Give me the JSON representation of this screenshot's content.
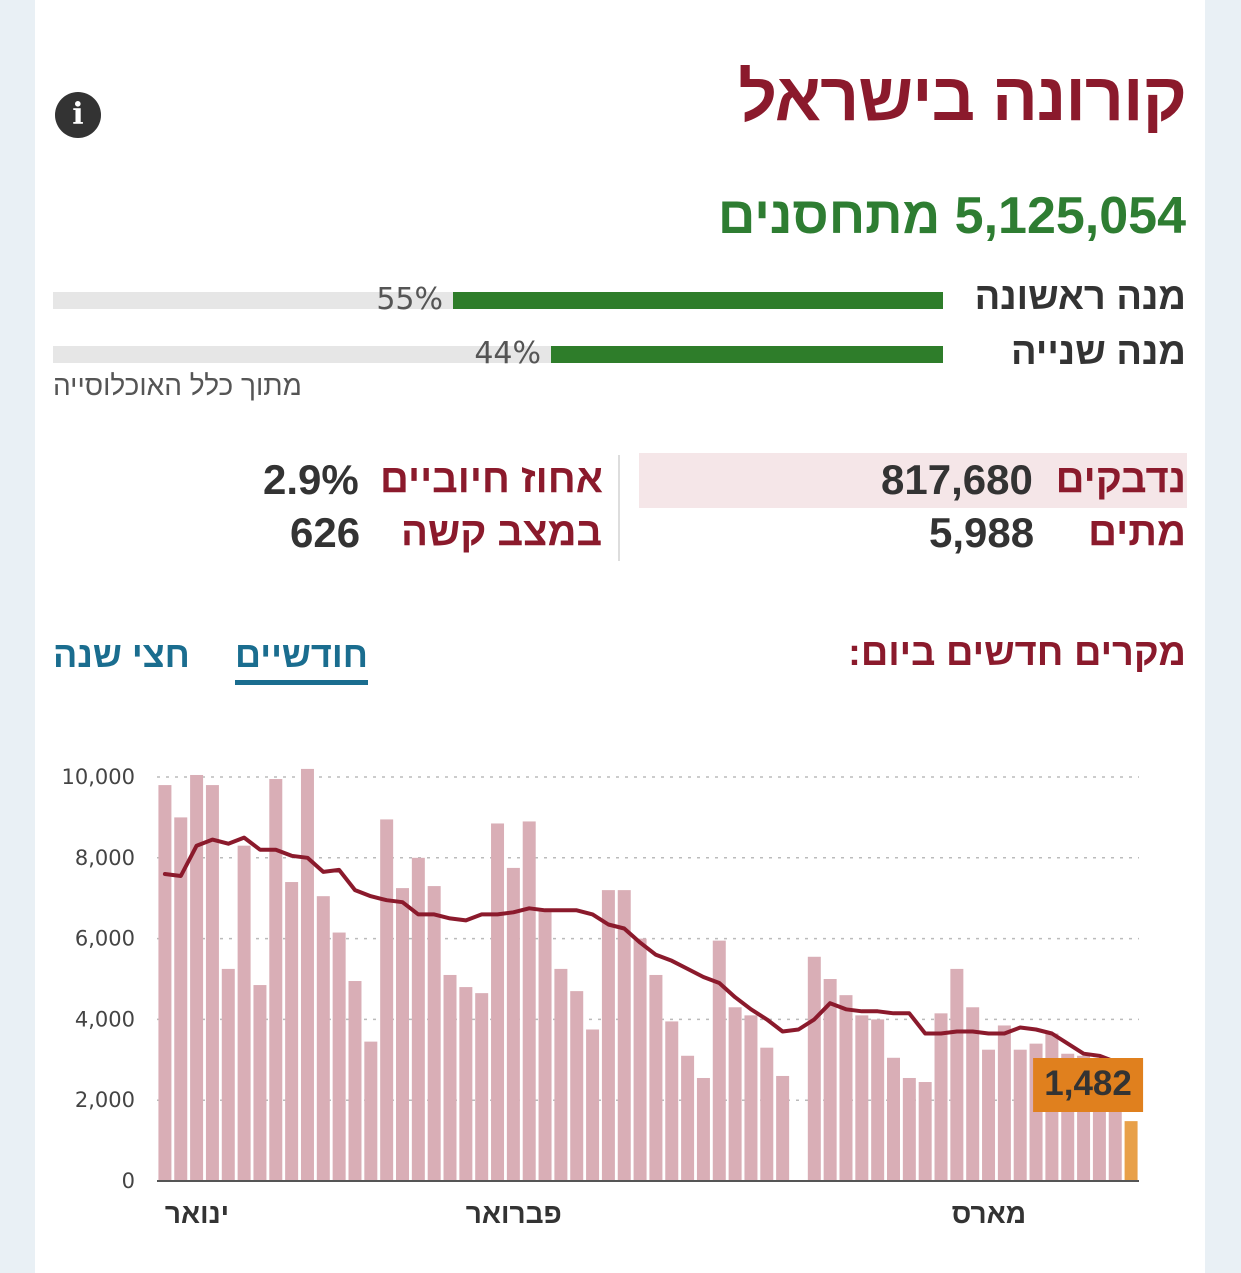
{
  "header": {
    "title": "קורונה בישראל",
    "info_icon": "info-icon"
  },
  "vaccination": {
    "total_text": "5,125,054 מתחסנים",
    "doses": [
      {
        "label": "מנה ראשונה",
        "percent": 55,
        "percent_text": "55%"
      },
      {
        "label": "מנה שנייה",
        "percent": 44,
        "percent_text": "44%"
      }
    ],
    "note": "מתוך כלל האוכלוסייה"
  },
  "stats": {
    "infected_label": "נדבקים",
    "infected_value": "817,680",
    "deaths_label": "מתים",
    "deaths_value": "5,988",
    "positive_label": "אחוז חיוביים",
    "positive_value": "2.9%",
    "severe_label": "במצב קשה",
    "severe_value": "626"
  },
  "chart_section": {
    "heading": "מקרים חדשים ביום:",
    "tabs": [
      {
        "label": "חודשיים",
        "active": true
      },
      {
        "label": "חצי שנה",
        "active": false
      }
    ]
  },
  "colors": {
    "bar": "#d9aeb6",
    "bar_latest": "#e8a049",
    "avg_line": "#8b1a2c",
    "callout": "#e0801e"
  },
  "chart_data": {
    "type": "bar",
    "ylim": [
      0,
      10000
    ],
    "yticks": [
      0,
      2000,
      4000,
      6000,
      8000,
      10000
    ],
    "ytick_labels": [
      "0",
      "2,000",
      "4,000",
      "6,000",
      "8,000",
      "10,000"
    ],
    "grid": true,
    "month_labels": [
      {
        "label": "ינואר",
        "index": 0
      },
      {
        "label": "פברואר",
        "index": 20
      },
      {
        "label": "מארס",
        "index": 50
      }
    ],
    "series": [
      {
        "type": "bar",
        "values": [
          9800,
          9000,
          10050,
          9800,
          5250,
          8300,
          4850,
          9950,
          7400,
          10200,
          7050,
          6150,
          4950,
          3450,
          8950,
          7250,
          8000,
          7300,
          5100,
          4800,
          4650,
          8850,
          7750,
          8900,
          6700,
          5250,
          4700,
          3750,
          7200,
          7200,
          6000,
          5100,
          3950,
          3100,
          2550,
          5950,
          4300,
          4100,
          3300,
          2600,
          0,
          5550,
          5000,
          4600,
          4100,
          4000,
          3050,
          2550,
          2450,
          4150,
          5250,
          4300,
          3250,
          3850,
          3250,
          3400,
          3650,
          3150,
          3100,
          3050,
          2900,
          1482
        ]
      },
      {
        "type": "line",
        "values": [
          7600,
          7550,
          8300,
          8450,
          8350,
          8500,
          8200,
          8200,
          8050,
          8000,
          7650,
          7700,
          7200,
          7050,
          6950,
          6900,
          6600,
          6600,
          6500,
          6450,
          6600,
          6600,
          6650,
          6750,
          6700,
          6700,
          6700,
          6600,
          6350,
          6250,
          5900,
          5600,
          5450,
          5250,
          5050,
          4900,
          4550,
          4250,
          4000,
          3700,
          3750,
          4000,
          4400,
          4250,
          4200,
          4200,
          4150,
          4150,
          3650,
          3650,
          3700,
          3700,
          3650,
          3650,
          3800,
          3750,
          3650,
          3400,
          3150,
          3100,
          2950
        ]
      }
    ],
    "latest_value_label": "1,482"
  }
}
